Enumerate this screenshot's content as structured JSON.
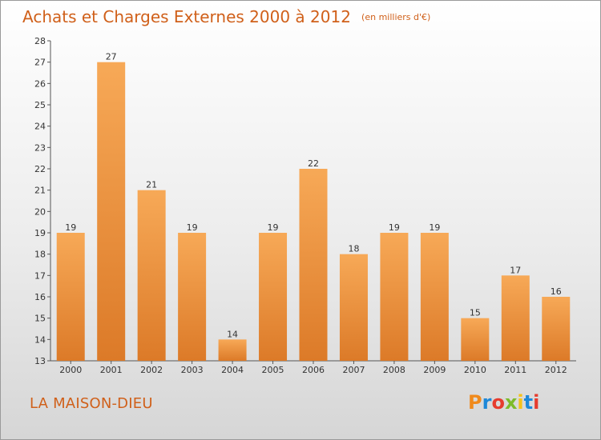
{
  "header": {
    "title": "Achats et Charges Externes 2000 à 2012",
    "subtitle": "(en milliers d'€)"
  },
  "footer": {
    "commune": "LA MAISON-DIEU",
    "logo_text": "Proxiti",
    "logo_colors": [
      "#f08a1c",
      "#1e88d8",
      "#e63c2e",
      "#7dbb2a",
      "#f5c21b",
      "#1e88d8",
      "#e63c2e"
    ]
  },
  "colors": {
    "title": "#d0601a",
    "bar_light": "#f7a957",
    "bar_dark": "#dc7a28"
  },
  "chart_data": {
    "type": "bar",
    "title": "Achats et Charges Externes 2000 à 2012",
    "subtitle": "(en milliers d'€)",
    "categories": [
      "2000",
      "2001",
      "2002",
      "2003",
      "2004",
      "2005",
      "2006",
      "2007",
      "2008",
      "2009",
      "2010",
      "2011",
      "2012"
    ],
    "values": [
      19,
      27,
      21,
      19,
      14,
      19,
      22,
      18,
      19,
      19,
      15,
      17,
      16
    ],
    "ylim": [
      13,
      28
    ],
    "yticks": [
      13,
      14,
      15,
      16,
      17,
      18,
      19,
      20,
      21,
      22,
      23,
      24,
      25,
      26,
      27,
      28
    ],
    "grid": false,
    "legend": "none"
  }
}
